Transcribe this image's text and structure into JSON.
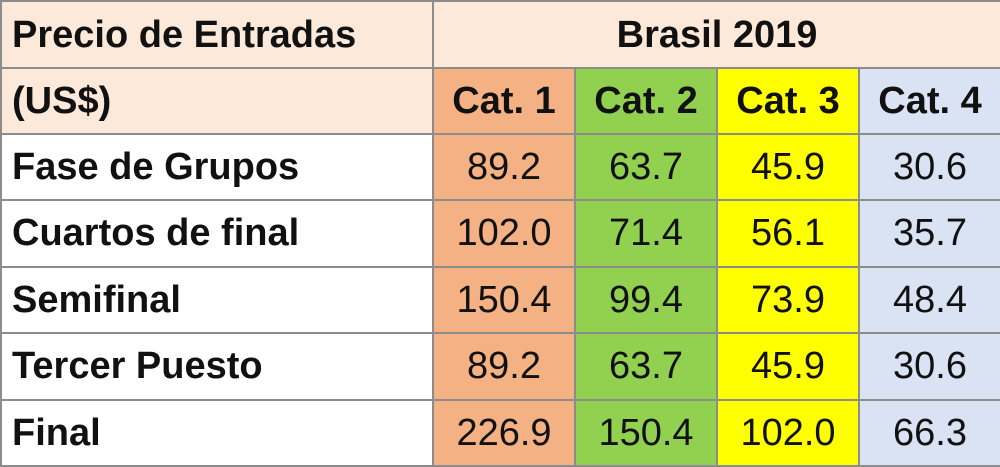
{
  "chart_data": {
    "type": "table",
    "header_label_line1": "Precio de Entradas",
    "header_label_line2": "(US$)",
    "title": "Brasil 2019",
    "categories": [
      "Cat. 1",
      "Cat. 2",
      "Cat. 3",
      "Cat. 4"
    ],
    "category_colors": [
      "#f4b183",
      "#92d050",
      "#ffff00",
      "#dae3f3"
    ],
    "rows": [
      {
        "label": "Fase de Grupos",
        "values": [
          "89.2",
          "63.7",
          "45.9",
          "30.6"
        ]
      },
      {
        "label": "Cuartos de final",
        "values": [
          "102.0",
          "71.4",
          "56.1",
          "35.7"
        ]
      },
      {
        "label": "Semifinal",
        "values": [
          "150.4",
          "99.4",
          "73.9",
          "48.4"
        ]
      },
      {
        "label": "Tercer Puesto",
        "values": [
          "89.2",
          "63.7",
          "45.9",
          "30.6"
        ]
      },
      {
        "label": "Final",
        "values": [
          "226.9",
          "150.4",
          "102.0",
          "66.3"
        ]
      }
    ]
  }
}
